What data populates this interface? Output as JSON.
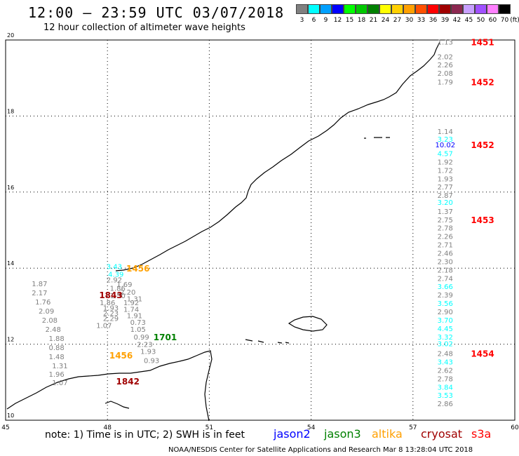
{
  "header": {
    "title": "12:00 — 23:59 UTC 03/07/2018",
    "subtitle": "12 hour collection of altimeter wave heights"
  },
  "color_scale": {
    "unit_label": "(ft)",
    "bins": [
      {
        "label": "3",
        "color": "#808080"
      },
      {
        "label": "6",
        "color": "#00ffff"
      },
      {
        "label": "9",
        "color": "#00a0ff"
      },
      {
        "label": "12",
        "color": "#0000ff"
      },
      {
        "label": "15",
        "color": "#00ff00"
      },
      {
        "label": "18",
        "color": "#00c800"
      },
      {
        "label": "21",
        "color": "#008000"
      },
      {
        "label": "24",
        "color": "#ffff00"
      },
      {
        "label": "27",
        "color": "#ffd000"
      },
      {
        "label": "30",
        "color": "#ffa000"
      },
      {
        "label": "33",
        "color": "#ff5000"
      },
      {
        "label": "36",
        "color": "#ff0000"
      },
      {
        "label": "39",
        "color": "#a00000"
      },
      {
        "label": "42",
        "color": "#8c2850"
      },
      {
        "label": "45",
        "color": "#c8a0ff"
      },
      {
        "label": "50",
        "color": "#a050ff"
      },
      {
        "label": "60",
        "color": "#ff80ff"
      },
      {
        "label": "70",
        "color": "#000000"
      }
    ]
  },
  "axes": {
    "lon_ticks": [
      "45",
      "48",
      "51",
      "54",
      "57",
      "60"
    ],
    "lat_ticks": [
      "20",
      "18",
      "16",
      "14",
      "12",
      "10"
    ]
  },
  "tracks": [
    {
      "id": "east",
      "readings": [
        {
          "text": "1.13",
          "color": "#808080",
          "lat": 19.95
        },
        {
          "text": "2.02",
          "color": "#808080",
          "lat": 19.57
        },
        {
          "text": "2.26",
          "color": "#808080",
          "lat": 19.35
        },
        {
          "text": "2.08",
          "color": "#808080",
          "lat": 19.13
        },
        {
          "text": "1.79",
          "color": "#808080",
          "lat": 18.9
        },
        {
          "text": "1.14",
          "color": "#808080",
          "lat": 17.6
        },
        {
          "text": "3.23",
          "color": "#00ffff",
          "lat": 17.4
        },
        {
          "text": "10.02",
          "color": "#0000ff",
          "lat": 17.25
        },
        {
          "text": "4.57",
          "color": "#00ffff",
          "lat": 17.02
        },
        {
          "text": "1.92",
          "color": "#808080",
          "lat": 16.8
        },
        {
          "text": "1.72",
          "color": "#808080",
          "lat": 16.58
        },
        {
          "text": "1.93",
          "color": "#808080",
          "lat": 16.36
        },
        {
          "text": "2.77",
          "color": "#808080",
          "lat": 16.14
        },
        {
          "text": "2.87",
          "color": "#808080",
          "lat": 15.92
        },
        {
          "text": "3.20",
          "color": "#00ffff",
          "lat": 15.74
        },
        {
          "text": "1.37",
          "color": "#808080",
          "lat": 15.5
        },
        {
          "text": "2.75",
          "color": "#808080",
          "lat": 15.28
        },
        {
          "text": "2.78",
          "color": "#808080",
          "lat": 15.06
        },
        {
          "text": "2.26",
          "color": "#808080",
          "lat": 14.84
        },
        {
          "text": "2.71",
          "color": "#808080",
          "lat": 14.62
        },
        {
          "text": "2.46",
          "color": "#808080",
          "lat": 14.4
        },
        {
          "text": "2.30",
          "color": "#808080",
          "lat": 14.18
        },
        {
          "text": "2.18",
          "color": "#808080",
          "lat": 13.96
        },
        {
          "text": "2.74",
          "color": "#808080",
          "lat": 13.74
        },
        {
          "text": "3.66",
          "color": "#00ffff",
          "lat": 13.52
        },
        {
          "text": "2.39",
          "color": "#808080",
          "lat": 13.3
        },
        {
          "text": "3.56",
          "color": "#00ffff",
          "lat": 13.08
        },
        {
          "text": "2.90",
          "color": "#808080",
          "lat": 12.86
        },
        {
          "text": "3.70",
          "color": "#00ffff",
          "lat": 12.64
        },
        {
          "text": "4.45",
          "color": "#00ffff",
          "lat": 12.42
        },
        {
          "text": "3.32",
          "color": "#00ffff",
          "lat": 12.2
        },
        {
          "text": "3.02",
          "color": "#00ffff",
          "lat": 12.02
        },
        {
          "text": "2.48",
          "color": "#808080",
          "lat": 11.76
        },
        {
          "text": "3.43",
          "color": "#00ffff",
          "lat": 11.54
        },
        {
          "text": "2.62",
          "color": "#808080",
          "lat": 11.32
        },
        {
          "text": "2.78",
          "color": "#808080",
          "lat": 11.1
        },
        {
          "text": "3.84",
          "color": "#00ffff",
          "lat": 10.88
        },
        {
          "text": "3.53",
          "color": "#00ffff",
          "lat": 10.66
        },
        {
          "text": "2.86",
          "color": "#808080",
          "lat": 10.44
        }
      ],
      "times": [
        {
          "text": "1451",
          "color": "#ff0000",
          "lat": 19.95
        },
        {
          "text": "1452",
          "color": "#ff0000",
          "lat": 18.9
        },
        {
          "text": "1452",
          "color": "#ff0000",
          "lat": 17.25
        },
        {
          "text": "1453",
          "color": "#ff0000",
          "lat": 15.28
        },
        {
          "text": "1454",
          "color": "#ff0000",
          "lat": 11.76
        }
      ]
    }
  ],
  "gulf_labels": [
    {
      "text": "1.87",
      "color": "#808080",
      "lon": 46.0,
      "lat": 13.6
    },
    {
      "text": "2.17",
      "color": "#808080",
      "lon": 46.0,
      "lat": 13.36
    },
    {
      "text": "1.76",
      "color": "#808080",
      "lon": 46.1,
      "lat": 13.12
    },
    {
      "text": "2.09",
      "color": "#808080",
      "lon": 46.2,
      "lat": 12.88
    },
    {
      "text": "2.08",
      "color": "#808080",
      "lon": 46.3,
      "lat": 12.64
    },
    {
      "text": "2.48",
      "color": "#808080",
      "lon": 46.4,
      "lat": 12.4
    },
    {
      "text": "1.88",
      "color": "#808080",
      "lon": 46.5,
      "lat": 12.16
    },
    {
      "text": "0.88",
      "color": "#808080",
      "lon": 46.5,
      "lat": 11.92
    },
    {
      "text": "1.48",
      "color": "#808080",
      "lon": 46.5,
      "lat": 11.68
    },
    {
      "text": "1.31",
      "color": "#808080",
      "lon": 46.6,
      "lat": 11.44
    },
    {
      "text": "1.96",
      "color": "#808080",
      "lon": 46.5,
      "lat": 11.22
    },
    {
      "text": "3.43",
      "color": "#00ffff",
      "lon": 48.2,
      "lat": 14.05
    },
    {
      "text": "4.39",
      "color": "#00ffff",
      "lon": 48.25,
      "lat": 13.85
    },
    {
      "text": "2.92",
      "color": "#808080",
      "lon": 48.2,
      "lat": 13.7
    },
    {
      "text": "1.69",
      "color": "#808080",
      "lon": 48.5,
      "lat": 13.58
    },
    {
      "text": "1.86",
      "color": "#808080",
      "lon": 48.3,
      "lat": 13.48
    },
    {
      "text": "2.20",
      "color": "#808080",
      "lon": 48.6,
      "lat": 13.38
    },
    {
      "text": "1.50",
      "color": "#808080",
      "lon": 48.3,
      "lat": 13.28
    },
    {
      "text": "1.31",
      "color": "#808080",
      "lon": 48.8,
      "lat": 13.2
    },
    {
      "text": "1.86",
      "color": "#808080",
      "lon": 48.0,
      "lat": 13.1
    },
    {
      "text": "1.92",
      "color": "#808080",
      "lon": 48.7,
      "lat": 13.1
    },
    {
      "text": "1.93",
      "color": "#808080",
      "lon": 48.1,
      "lat": 12.96
    },
    {
      "text": "1.74",
      "color": "#808080",
      "lon": 48.7,
      "lat": 12.92
    },
    {
      "text": "2.23",
      "color": "#808080",
      "lon": 48.1,
      "lat": 12.82
    },
    {
      "text": "1.91",
      "color": "#808080",
      "lon": 48.8,
      "lat": 12.76
    },
    {
      "text": "2.29",
      "color": "#808080",
      "lon": 48.1,
      "lat": 12.68
    },
    {
      "text": "0.73",
      "color": "#808080",
      "lon": 48.9,
      "lat": 12.58
    },
    {
      "text": "1.07",
      "color": "#808080",
      "lon": 47.9,
      "lat": 12.5
    },
    {
      "text": "1.05",
      "color": "#808080",
      "lon": 48.9,
      "lat": 12.4
    },
    {
      "text": "0.99",
      "color": "#808080",
      "lon": 49.0,
      "lat": 12.2
    },
    {
      "text": "2.23",
      "color": "#808080",
      "lon": 49.1,
      "lat": 12.0
    },
    {
      "text": "1.93",
      "color": "#808080",
      "lon": 49.2,
      "lat": 11.82
    },
    {
      "text": "0.93",
      "color": "#808080",
      "lon": 49.3,
      "lat": 11.58
    },
    {
      "text": "1.07",
      "color": "#808080",
      "lon": 46.6,
      "lat": 11.0
    }
  ],
  "gulf_times": [
    {
      "text": "1456",
      "color": "#ffa000",
      "lon": 48.9,
      "lat": 14.0
    },
    {
      "text": "1843",
      "color": "#a00000",
      "lon": 48.1,
      "lat": 13.3
    },
    {
      "text": "1701",
      "color": "#008000",
      "lon": 49.7,
      "lat": 12.2
    },
    {
      "text": "1456",
      "color": "#ffa000",
      "lon": 48.4,
      "lat": 11.72
    },
    {
      "text": "1842",
      "color": "#a00000",
      "lon": 48.6,
      "lat": 11.03
    }
  ],
  "note": {
    "text": "note: 1) Time is in UTC; 2) SWH is in feet",
    "satellites": [
      {
        "name": "jason2",
        "color": "#0000ff"
      },
      {
        "name": "jason3",
        "color": "#008000"
      },
      {
        "name": "altika",
        "color": "#ffa000"
      },
      {
        "name": "cryosat",
        "color": "#a00000"
      },
      {
        "name": "s3a",
        "color": "#ff0000"
      }
    ]
  },
  "footer": "NOAA/NESDIS Center for Satellite Applications and Research   Mar  8 13:28:04 UTC 2018"
}
